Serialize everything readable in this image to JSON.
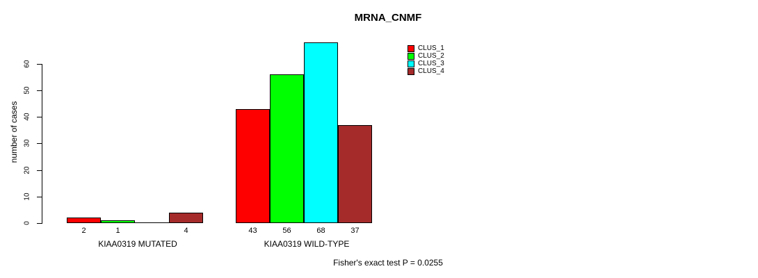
{
  "title": "MRNA_CNMF",
  "footer": "Fisher's exact test P = 0.0255",
  "legend": {
    "items": [
      {
        "label": "CLUS_1",
        "color": "#FF0000"
      },
      {
        "label": "CLUS_2",
        "color": "#00FF00"
      },
      {
        "label": "CLUS_3",
        "color": "#00FFFF"
      },
      {
        "label": "CLUS_4",
        "color": "#A52A2A"
      }
    ]
  },
  "chart_data": {
    "type": "bar",
    "title": "MRNA_CNMF",
    "xlabel": "",
    "ylabel": "number of cases",
    "categories": [
      "KIAA0319 MUTATED",
      "KIAA0319 WILD-TYPE"
    ],
    "series": [
      {
        "name": "CLUS_1",
        "color": "#FF0000",
        "values": [
          2,
          43
        ]
      },
      {
        "name": "CLUS_2",
        "color": "#00FF00",
        "values": [
          1,
          56
        ]
      },
      {
        "name": "CLUS_3",
        "color": "#00FFFF",
        "values": [
          0,
          68
        ]
      },
      {
        "name": "CLUS_4",
        "color": "#A52A2A",
        "values": [
          4,
          37
        ]
      }
    ],
    "bar_value_labels": [
      [
        "2",
        "1",
        "",
        "4"
      ],
      [
        "43",
        "56",
        "68",
        "37"
      ]
    ],
    "yticks": [
      0,
      10,
      20,
      30,
      40,
      50,
      60
    ],
    "ylim": [
      0,
      68
    ],
    "grid": false,
    "legend_position": "top-right",
    "annotation": "Fisher's exact test P = 0.0255"
  }
}
